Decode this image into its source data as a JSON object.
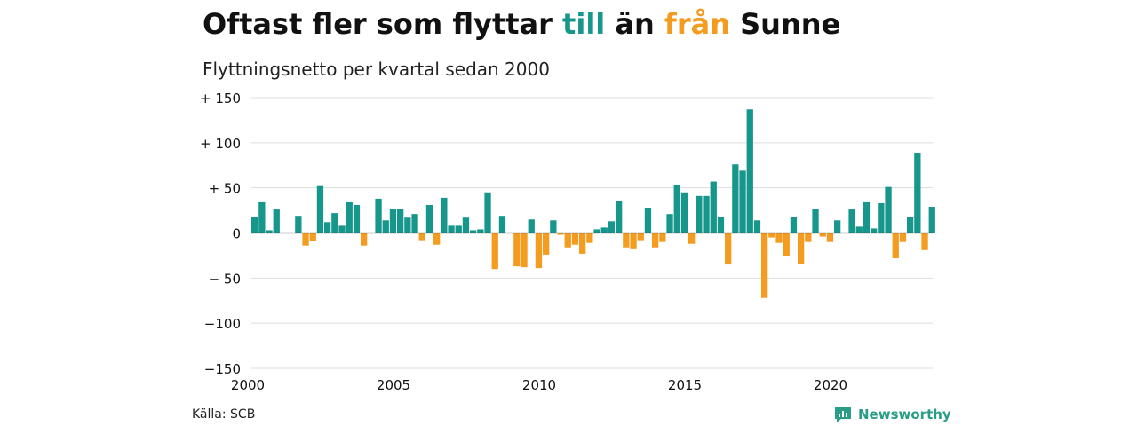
{
  "header": {
    "title_part1": "Oftast fler som flyttar ",
    "title_pos": "till",
    "title_mid": " än ",
    "title_neg": "från",
    "title_end": " Sunne",
    "subtitle": "Flyttningsnetto per kvartal sedan 2000"
  },
  "footer": {
    "source": "Källa: SCB",
    "brand": "Newsworthy"
  },
  "colors": {
    "positive": "#17978c",
    "negative": "#f39c1f",
    "grid": "#dddddd",
    "zero_line": "#333333"
  },
  "chart_data": {
    "type": "bar",
    "title": "Oftast fler som flyttar till än från Sunne",
    "subtitle": "Flyttningsnetto per kvartal sedan 2000",
    "start_year": 2000,
    "start_quarter": 1,
    "ylim": [
      -150,
      150
    ],
    "yticks": [
      150,
      100,
      50,
      0,
      -50,
      -100,
      -150
    ],
    "ytick_labels": [
      "+ 150",
      "+ 100",
      "+  50",
      "0",
      "− 50",
      "−100",
      "−150"
    ],
    "xticks": [
      2000,
      2005,
      2010,
      2015,
      2020
    ],
    "xtick_labels": [
      "2000",
      "2005",
      "2010",
      "2015",
      "2020"
    ],
    "grid": true,
    "values": [
      18,
      34,
      3,
      26,
      0,
      0,
      19,
      -14,
      -9,
      52,
      12,
      22,
      8,
      34,
      31,
      -14,
      0,
      38,
      14,
      27,
      27,
      17,
      21,
      -8,
      31,
      -13,
      39,
      8,
      8,
      17,
      3,
      4,
      45,
      -40,
      19,
      0,
      -37,
      -38,
      15,
      -39,
      -24,
      14,
      -2,
      -16,
      -13,
      -23,
      -11,
      4,
      6,
      13,
      35,
      -16,
      -18,
      -8,
      28,
      -16,
      -10,
      21,
      53,
      45,
      -12,
      41,
      41,
      57,
      18,
      -35,
      76,
      69,
      137,
      14,
      -72,
      -5,
      -11,
      -26,
      18,
      -34,
      -10,
      27,
      -4,
      -10,
      14,
      0,
      26,
      7,
      34,
      5,
      33,
      51,
      -28,
      -10,
      18,
      89,
      -19,
      29
    ]
  }
}
